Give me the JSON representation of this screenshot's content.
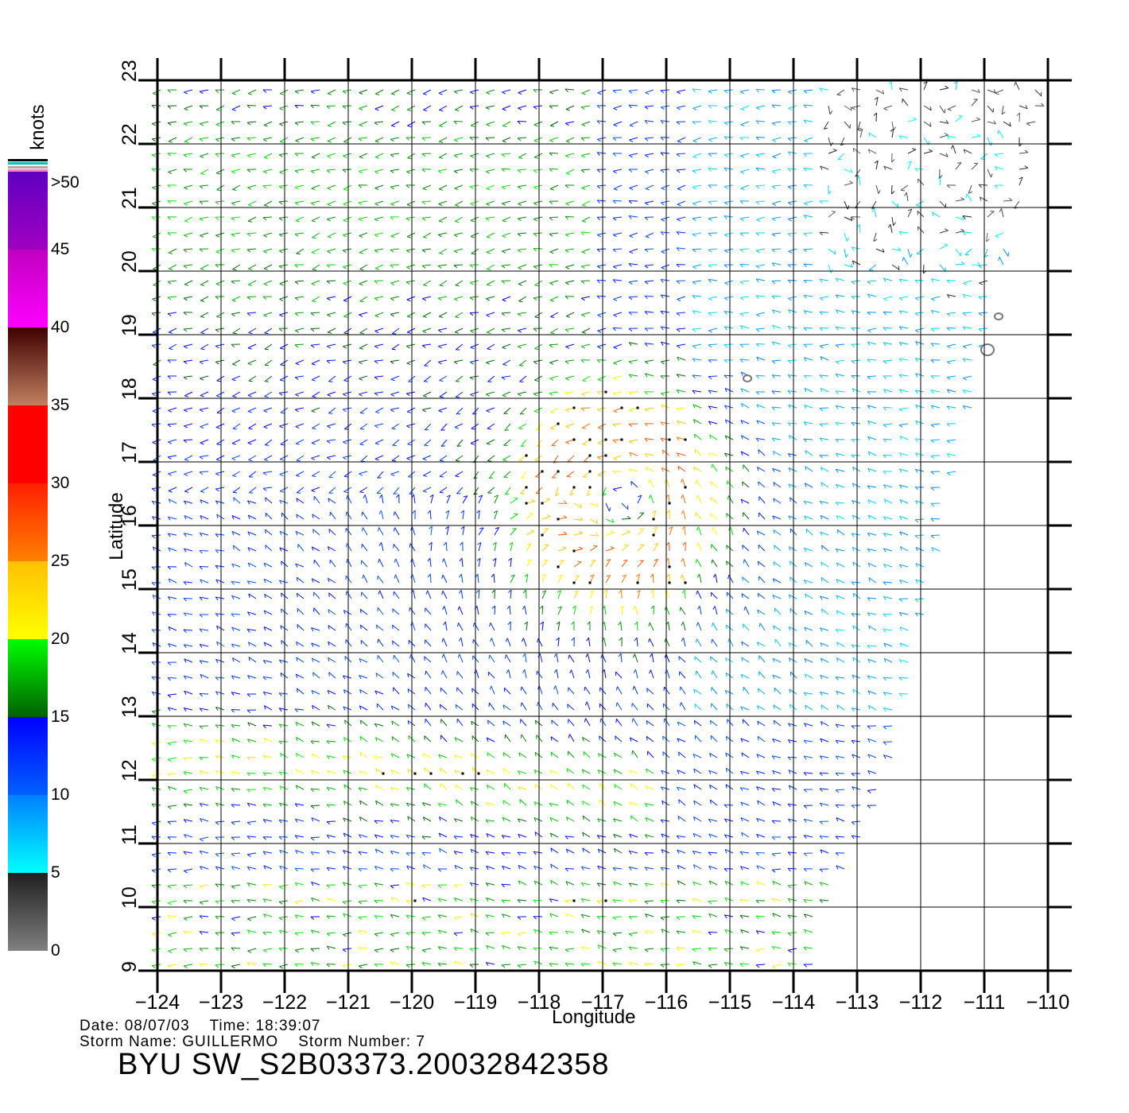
{
  "map": {
    "x_axis_label": "Longitude",
    "y_axis_label": "Latitude",
    "lon_range": [
      -124,
      -110
    ],
    "lat_range": [
      9,
      23
    ],
    "lon_ticks": [
      "−124",
      "−123",
      "−122",
      "−121",
      "−120",
      "−119",
      "−118",
      "−117",
      "−116",
      "−115",
      "−114",
      "−113",
      "−112",
      "−111",
      "−110"
    ],
    "lat_ticks": [
      "9",
      "10",
      "11",
      "12",
      "13",
      "14",
      "15",
      "16",
      "17",
      "18",
      "19",
      "20",
      "21",
      "22",
      "23"
    ],
    "storm_center_lon_lat": [
      -116.6,
      16.4
    ],
    "coverage_note": "swath east edge from about -112.5 at lat 12 to -110 at lat 23"
  },
  "colorbar": {
    "unit_label": "knots",
    "ticks": [
      "0",
      "5",
      "10",
      "15",
      "20",
      "25",
      "30",
      "35",
      "40",
      "45",
      ">50"
    ],
    "colors": {
      "0-5": [
        "#808080",
        "#202020"
      ],
      "5-10": [
        "#00ffff",
        "#0080ff"
      ],
      "10-15": [
        "#0060ff",
        "#0000ff"
      ],
      "15-20": [
        "#006000",
        "#00ff00"
      ],
      "20-25": [
        "#ffff00",
        "#ffc000"
      ],
      "25-30": [
        "#ff8000",
        "#ff2000"
      ],
      "30-35": [
        "#ff0000",
        "#ff0000"
      ],
      "35-40": [
        "#c08060",
        "#400000"
      ],
      "40-45": [
        "#ff00ff",
        "#c000c0"
      ],
      "45-50": [
        "#a000c0",
        "#6000c0"
      ]
    }
  },
  "footer": {
    "date_label": "Date:",
    "date": "08/07/03",
    "time_label": "Time:",
    "time": "18:39:07",
    "storm_name_label": "Storm Name:",
    "storm_name": "GUILLERMO",
    "storm_number_label": "Storm Number:",
    "storm_number": "7",
    "title": "BYU SW_S2B03373.20032842358"
  }
}
